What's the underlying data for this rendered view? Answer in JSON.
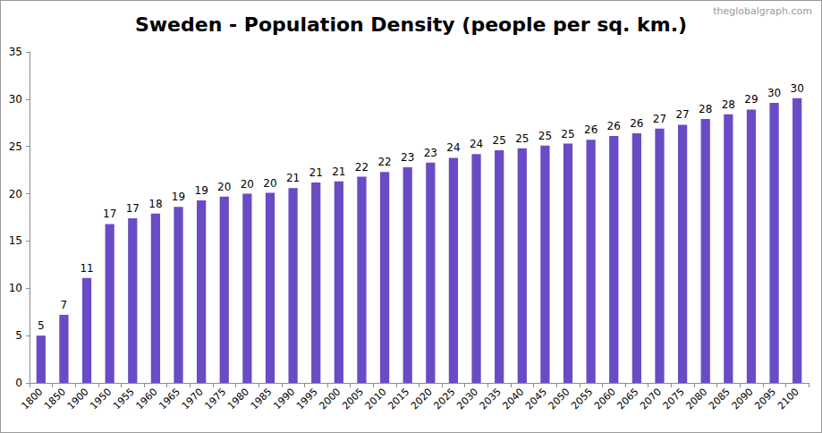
{
  "chart_data": {
    "type": "bar",
    "title": "Sweden - Population Density (people per sq. km.)",
    "annotations": [
      "theglobalgraph.com"
    ],
    "categories": [
      "1800",
      "1850",
      "1900",
      "1950",
      "1955",
      "1960",
      "1965",
      "1970",
      "1975",
      "1980",
      "1985",
      "1990",
      "1995",
      "2000",
      "2005",
      "2010",
      "2015",
      "2020",
      "2025",
      "2030",
      "2035",
      "2040",
      "2045",
      "2050",
      "2055",
      "2060",
      "2065",
      "2070",
      "2075",
      "2080",
      "2085",
      "2090",
      "2095",
      "2100"
    ],
    "values": [
      5.0,
      7.2,
      11.1,
      16.8,
      17.4,
      17.9,
      18.6,
      19.3,
      19.7,
      20.0,
      20.1,
      20.6,
      21.2,
      21.3,
      21.8,
      22.3,
      22.8,
      23.3,
      23.8,
      24.2,
      24.6,
      24.8,
      25.1,
      25.3,
      25.7,
      26.1,
      26.4,
      26.9,
      27.3,
      27.9,
      28.4,
      28.9,
      29.6,
      30.1
    ],
    "value_labels": [
      "5",
      "7",
      "11",
      "17",
      "17",
      "18",
      "19",
      "19",
      "20",
      "20",
      "20",
      "21",
      "21",
      "21",
      "22",
      "22",
      "23",
      "23",
      "24",
      "24",
      "25",
      "25",
      "25",
      "25",
      "26",
      "26",
      "26",
      "27",
      "27",
      "28",
      "28",
      "29",
      "30",
      "30"
    ],
    "color": "#6a4bc6",
    "ylim": [
      0,
      35
    ],
    "yticks": [
      0,
      5,
      10,
      15,
      20,
      25,
      30,
      35
    ],
    "grid": false,
    "data_labels": true
  }
}
